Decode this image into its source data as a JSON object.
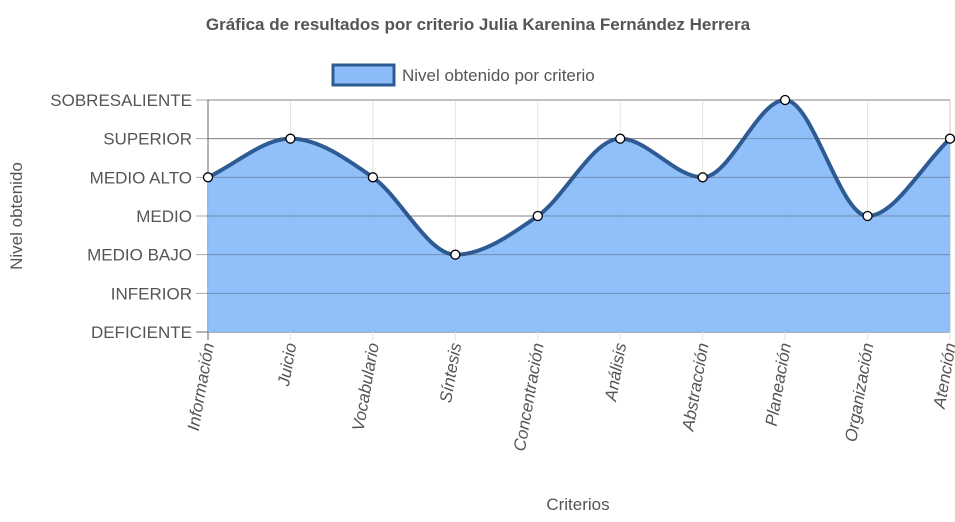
{
  "chart_data": {
    "type": "area",
    "title": "Gráfica de resultados por criterio Julia Karenina Fernández Herrera",
    "xlabel": "Criterios",
    "ylabel": "Nivel obtenido",
    "y_levels": [
      "DEFICIENTE",
      "INFERIOR",
      "MEDIO BAJO",
      "MEDIO",
      "MEDIO ALTO",
      "SUPERIOR",
      "SOBRESALIENTE"
    ],
    "ylim": [
      0,
      6
    ],
    "categories": [
      "Información",
      "Juicio",
      "Vocabulario",
      "Síntesis",
      "Concentración",
      "Análisis",
      "Abstracción",
      "Planeación",
      "Organización",
      "Atención"
    ],
    "series": [
      {
        "name": "Nivel obtenido por criterio",
        "values": [
          4,
          5,
          4,
          2,
          3,
          5,
          4,
          6,
          3,
          5
        ],
        "value_labels": [
          "MEDIO ALTO",
          "SUPERIOR",
          "MEDIO ALTO",
          "MEDIO BAJO",
          "MEDIO",
          "SUPERIOR",
          "MEDIO ALTO",
          "SOBRESALIENTE",
          "MEDIO",
          "SUPERIOR"
        ],
        "fill_color": "#8bbcf9",
        "line_color": "#2f5b94"
      }
    ],
    "legend_position": "top-center",
    "grid": true
  }
}
